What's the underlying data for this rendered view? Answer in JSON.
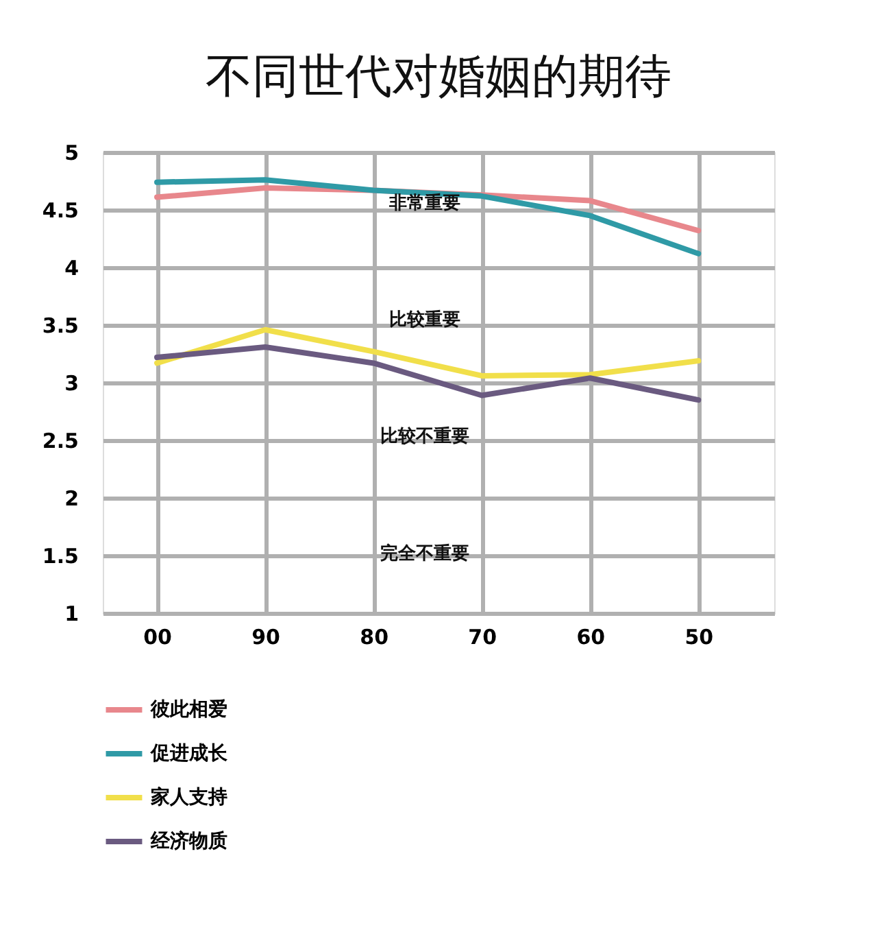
{
  "chart_data": {
    "type": "line",
    "title": "不同世代对婚姻的期待",
    "categories": [
      "00",
      "90",
      "80",
      "70",
      "60",
      "50"
    ],
    "series": [
      {
        "name": "彼此相爱",
        "color": "#e8878c",
        "values": [
          4.61,
          4.69,
          4.67,
          4.63,
          4.58,
          4.32
        ]
      },
      {
        "name": "促进成长",
        "color": "#2f9aa6",
        "values": [
          4.74,
          4.76,
          4.67,
          4.62,
          4.45,
          4.12
        ]
      },
      {
        "name": "家人支持",
        "color": "#f1df4a",
        "values": [
          3.17,
          3.46,
          3.27,
          3.06,
          3.07,
          3.19
        ]
      },
      {
        "name": "经济物质",
        "color": "#6a5a80",
        "values": [
          3.22,
          3.31,
          3.17,
          2.89,
          3.04,
          2.85
        ]
      }
    ],
    "ylim": [
      1,
      5
    ],
    "yticks": [
      1,
      1.5,
      2,
      2.5,
      3,
      3.5,
      4,
      4.5,
      5
    ],
    "annotations": [
      "非常重要",
      "比较重要",
      "比较不重要",
      "完全不重要"
    ],
    "grid": true,
    "legend": "bottom left",
    "marker": "none",
    "line_style": "solid"
  }
}
